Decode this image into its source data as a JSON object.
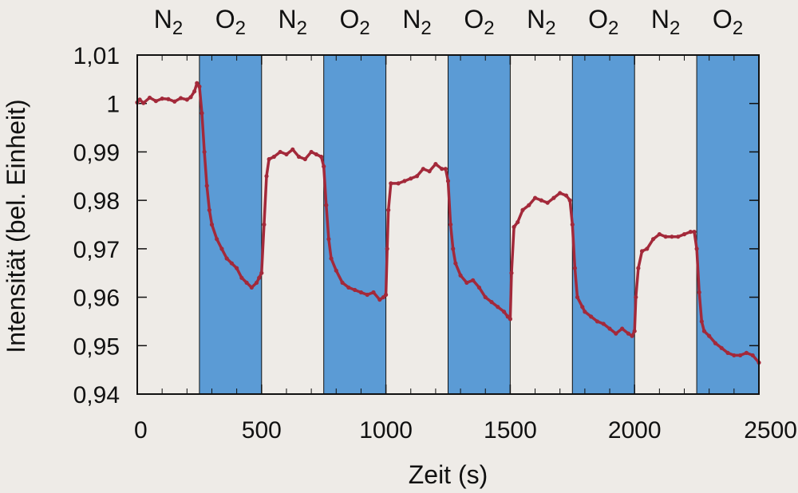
{
  "chart_data": {
    "type": "line",
    "title": "",
    "xlabel": "Zeit (s)",
    "ylabel": "Intensität (bel. Einheit)",
    "xlim": [
      0,
      2500
    ],
    "ylim": [
      0.94,
      1.01
    ],
    "x_ticks": [
      0,
      500,
      1000,
      1500,
      2000,
      2500
    ],
    "x_tick_labels": [
      "0",
      "500",
      "1000",
      "1500",
      "2000",
      "2500"
    ],
    "y_ticks": [
      0.94,
      0.95,
      0.96,
      0.97,
      0.98,
      0.99,
      1.0,
      1.01
    ],
    "y_tick_labels": [
      "0,94",
      "0,95",
      "0,96",
      "0,97",
      "0,98",
      "0,99",
      "1",
      "1,01"
    ],
    "gas_phases": [
      {
        "gas": "N",
        "sub": "2",
        "start": 0,
        "end": 250,
        "color": "#eeebe7"
      },
      {
        "gas": "O",
        "sub": "2",
        "start": 250,
        "end": 500,
        "color": "#5b9bd5"
      },
      {
        "gas": "N",
        "sub": "2",
        "start": 500,
        "end": 750,
        "color": "#eeebe7"
      },
      {
        "gas": "O",
        "sub": "2",
        "start": 750,
        "end": 1000,
        "color": "#5b9bd5"
      },
      {
        "gas": "N",
        "sub": "2",
        "start": 1000,
        "end": 1250,
        "color": "#eeebe7"
      },
      {
        "gas": "O",
        "sub": "2",
        "start": 1250,
        "end": 1500,
        "color": "#5b9bd5"
      },
      {
        "gas": "N",
        "sub": "2",
        "start": 1500,
        "end": 1750,
        "color": "#eeebe7"
      },
      {
        "gas": "O",
        "sub": "2",
        "start": 1750,
        "end": 2000,
        "color": "#5b9bd5"
      },
      {
        "gas": "N",
        "sub": "2",
        "start": 2000,
        "end": 2250,
        "color": "#eeebe7"
      },
      {
        "gas": "O",
        "sub": "2",
        "start": 2250,
        "end": 2500,
        "color": "#5b9bd5"
      }
    ],
    "series": [
      {
        "color": "#a3293a",
        "x": [
          0,
          10,
          25,
          50,
          75,
          100,
          125,
          150,
          175,
          200,
          215,
          230,
          240,
          250,
          260,
          270,
          280,
          290,
          300,
          320,
          340,
          360,
          380,
          400,
          420,
          440,
          460,
          480,
          490,
          500,
          510,
          520,
          530,
          550,
          575,
          600,
          625,
          650,
          675,
          700,
          720,
          740,
          750,
          760,
          770,
          780,
          800,
          825,
          850,
          875,
          900,
          925,
          950,
          975,
          990,
          1000,
          1005,
          1010,
          1020,
          1050,
          1075,
          1100,
          1125,
          1150,
          1175,
          1200,
          1225,
          1240,
          1250,
          1260,
          1270,
          1280,
          1300,
          1325,
          1350,
          1375,
          1400,
          1425,
          1450,
          1475,
          1490,
          1500,
          1505,
          1515,
          1530,
          1550,
          1575,
          1600,
          1625,
          1650,
          1675,
          1700,
          1725,
          1740,
          1750,
          1760,
          1770,
          1790,
          1800,
          1825,
          1850,
          1875,
          1900,
          1925,
          1950,
          1975,
          1990,
          2000,
          2005,
          2015,
          2030,
          2050,
          2075,
          2100,
          2125,
          2150,
          2175,
          2200,
          2225,
          2240,
          2250,
          2260,
          2270,
          2280,
          2300,
          2325,
          2350,
          2375,
          2400,
          2425,
          2450,
          2475,
          2500
        ],
        "y": [
          1.0002,
          1.0008,
          1.0001,
          1.0012,
          1.0005,
          1.001,
          1.0009,
          1.0004,
          1.0011,
          1.0008,
          1.0013,
          1.0025,
          1.0042,
          1.0035,
          0.998,
          0.99,
          0.983,
          0.978,
          0.975,
          0.972,
          0.97,
          0.968,
          0.967,
          0.966,
          0.964,
          0.963,
          0.962,
          0.963,
          0.964,
          0.965,
          0.975,
          0.985,
          0.9885,
          0.989,
          0.99,
          0.9895,
          0.9905,
          0.989,
          0.9885,
          0.99,
          0.9895,
          0.989,
          0.987,
          0.979,
          0.972,
          0.968,
          0.9655,
          0.963,
          0.962,
          0.9615,
          0.961,
          0.9605,
          0.961,
          0.9595,
          0.96,
          0.9605,
          0.97,
          0.978,
          0.9835,
          0.9835,
          0.984,
          0.9845,
          0.985,
          0.9865,
          0.986,
          0.9875,
          0.9865,
          0.9865,
          0.984,
          0.975,
          0.97,
          0.967,
          0.9645,
          0.963,
          0.9635,
          0.962,
          0.96,
          0.959,
          0.958,
          0.957,
          0.956,
          0.9555,
          0.965,
          0.9745,
          0.9755,
          0.978,
          0.979,
          0.9805,
          0.98,
          0.9795,
          0.9805,
          0.9815,
          0.981,
          0.98,
          0.975,
          0.966,
          0.96,
          0.958,
          0.957,
          0.956,
          0.955,
          0.9545,
          0.9535,
          0.9525,
          0.9535,
          0.9525,
          0.952,
          0.953,
          0.96,
          0.966,
          0.9695,
          0.97,
          0.972,
          0.973,
          0.9725,
          0.9725,
          0.9725,
          0.973,
          0.9735,
          0.9735,
          0.97,
          0.961,
          0.955,
          0.953,
          0.952,
          0.9505,
          0.9495,
          0.9485,
          0.948,
          0.948,
          0.9485,
          0.948,
          0.9465
        ]
      }
    ]
  }
}
